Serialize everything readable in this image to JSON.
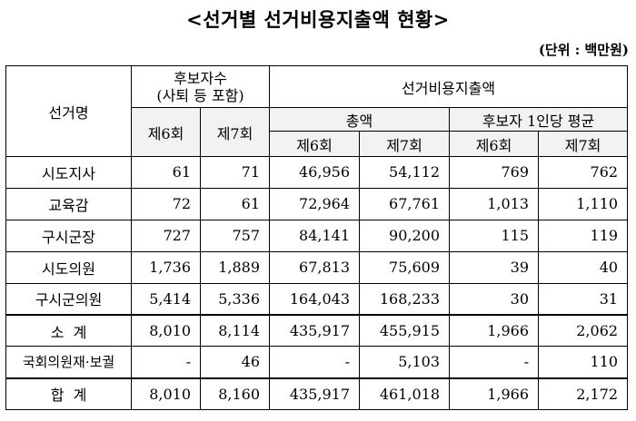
{
  "title": "<선거별 선거비용지출액 현황>",
  "unit": "(단위 : 백만원)",
  "headers": {
    "election_name": "선거명",
    "candidates": "후보자수",
    "candidates_sub": "(사퇴 등 포함)",
    "spending": "선거비용지출액",
    "total": "총액",
    "per_candidate": "후보자 1인당 평균",
    "round6": "제6회",
    "round7": "제7회"
  },
  "rows": [
    {
      "name": "시도지사",
      "c6": "61",
      "c7": "71",
      "t6": "46,956",
      "t7": "54,112",
      "a6": "769",
      "a7": "762"
    },
    {
      "name": "교육감",
      "c6": "72",
      "c7": "61",
      "t6": "72,964",
      "t7": "67,761",
      "a6": "1,013",
      "a7": "1,110"
    },
    {
      "name": "구시군장",
      "c6": "727",
      "c7": "757",
      "t6": "84,141",
      "t7": "90,200",
      "a6": "115",
      "a7": "119"
    },
    {
      "name": "시도의원",
      "c6": "1,736",
      "c7": "1,889",
      "t6": "67,813",
      "t7": "75,609",
      "a6": "39",
      "a7": "40"
    },
    {
      "name": "구시군의원",
      "c6": "5,414",
      "c7": "5,336",
      "t6": "164,043",
      "t7": "168,233",
      "a6": "30",
      "a7": "31"
    },
    {
      "name": "소  계",
      "c6": "8,010",
      "c7": "8,114",
      "t6": "435,917",
      "t7": "455,915",
      "a6": "1,966",
      "a7": "2,062"
    },
    {
      "name": "국회의원재·보궐",
      "c6": "-",
      "c7": "46",
      "t6": "-",
      "t7": "5,103",
      "a6": "-",
      "a7": "110"
    },
    {
      "name": "합  계",
      "c6": "8,010",
      "c7": "8,160",
      "t6": "435,917",
      "t7": "461,018",
      "a6": "1,966",
      "a7": "2,172"
    }
  ]
}
